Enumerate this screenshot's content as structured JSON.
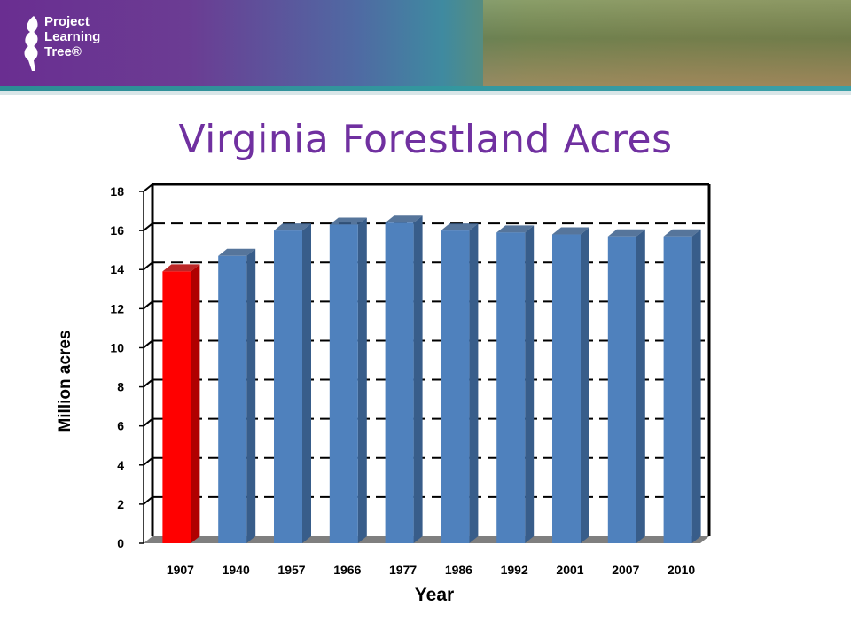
{
  "header": {
    "logo_lines": [
      "Project",
      "Learning",
      "Tree®"
    ]
  },
  "title": "Virginia Forestland Acres",
  "chart_data": {
    "type": "bar",
    "title": "Virginia Forestland Acres",
    "xlabel": "Year",
    "ylabel": "Million acres",
    "categories": [
      "1907",
      "1940",
      "1957",
      "1966",
      "1977",
      "1986",
      "1992",
      "2001",
      "2007",
      "2010"
    ],
    "values": [
      13.9,
      14.7,
      16.0,
      16.3,
      16.4,
      16.0,
      15.9,
      15.8,
      15.7,
      15.7
    ],
    "ylim": [
      0,
      18
    ],
    "yticks": [
      0,
      2,
      4,
      6,
      8,
      10,
      12,
      14,
      16,
      18
    ],
    "highlight_index": 0,
    "colors": {
      "bar": "#4f81bd",
      "bar_side": "#385d8a",
      "highlight": "#ff0000",
      "highlight_side": "#b00000",
      "floor": "#7f7f7f"
    },
    "grid": true
  }
}
